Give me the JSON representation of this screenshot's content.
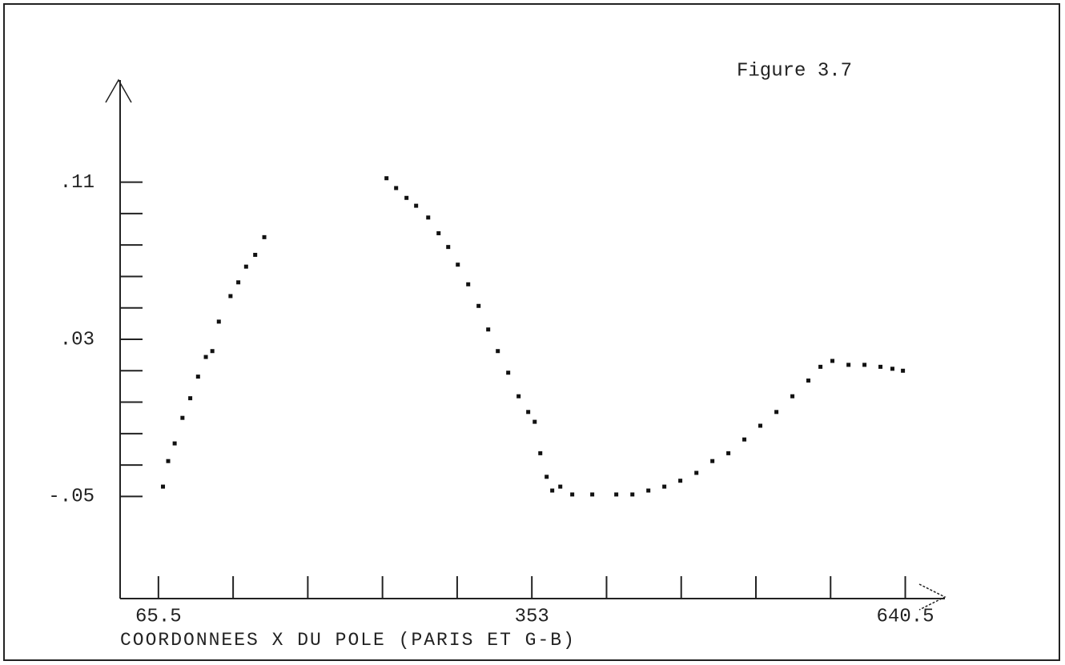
{
  "chart_data": {
    "type": "scatter",
    "title": "Figure 3.7",
    "xlabel": "COORDONNEES X DU POLE (PARIS ET G-B)",
    "xlim": [
      36,
      671
    ],
    "ylim": [
      -0.102,
      0.162
    ],
    "xticks": [
      65.5,
      353,
      640.5
    ],
    "xticks_minor": [
      123,
      180.5,
      238,
      295.5,
      410.5,
      468,
      525.5,
      583
    ],
    "yticks": [
      {
        "value": -0.05,
        "label": "-.05"
      },
      {
        "value": 0.03,
        "label": ".03"
      },
      {
        "value": 0.11,
        "label": ".11"
      }
    ],
    "yticks_minor": [
      -0.034,
      -0.018,
      -0.002,
      0.014,
      0.046,
      0.062,
      0.078,
      0.094
    ],
    "color": "#111111",
    "x": [
      69,
      73,
      78,
      84,
      90,
      96,
      102,
      107,
      112,
      121,
      127,
      133,
      140,
      147,
      241.1,
      248.5,
      256.5,
      263.9,
      273.2,
      281.2,
      288.6,
      296.0,
      304.0,
      312.0,
      319.4,
      326.8,
      334.8,
      342.8,
      350.2,
      355.2,
      359.5,
      364.4,
      368.7,
      374.9,
      384.1,
      399.5,
      418.0,
      430.4,
      442.7,
      455.0,
      467.3,
      479.7,
      492.0,
      504.3,
      516.6,
      528.9,
      541.3,
      553.6,
      565.9,
      575.2,
      584.4,
      596.8,
      609.1,
      621.4,
      630.6,
      638.7
    ],
    "values": [
      -0.045,
      -0.032,
      -0.023,
      -0.01,
      0.0,
      0.011,
      0.021,
      0.024,
      0.039,
      0.052,
      0.059,
      0.067,
      0.073,
      0.082,
      0.112,
      0.107,
      0.102,
      0.098,
      0.092,
      0.084,
      0.077,
      0.068,
      0.058,
      0.047,
      0.035,
      0.024,
      0.013,
      0.001,
      -0.007,
      -0.012,
      -0.028,
      -0.04,
      -0.047,
      -0.045,
      -0.049,
      -0.049,
      -0.049,
      -0.049,
      -0.047,
      -0.045,
      -0.042,
      -0.038,
      -0.032,
      -0.028,
      -0.021,
      -0.014,
      -0.007,
      0.001,
      0.009,
      0.016,
      0.019,
      0.017,
      0.017,
      0.016,
      0.015,
      0.014
    ]
  }
}
